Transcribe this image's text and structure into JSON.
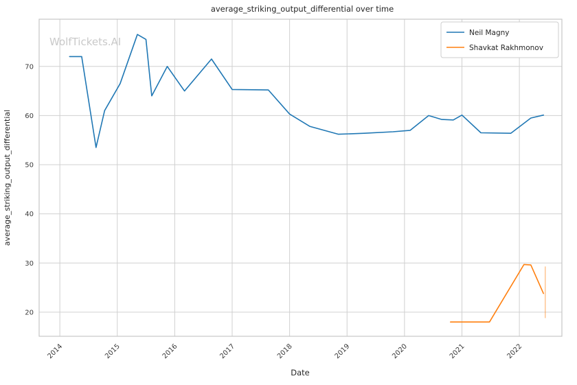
{
  "watermark": "WolfTickets.AI",
  "colors": {
    "grid": "#d0d0d0",
    "spine": "#c6c6c6",
    "text": "#262626",
    "tick_text": "#3a3a3a",
    "watermark": "#c9c9c9",
    "legend_border": "#cccccc",
    "legend_bg": "#ffffff"
  },
  "chart_data": {
    "type": "line",
    "title": "average_striking_output_differential over time",
    "xlabel": "Date",
    "ylabel": "average_striking_output_differential",
    "xlim": [
      2013.64,
      2022.74
    ],
    "ylim": [
      15.1,
      79.6
    ],
    "x_ticks": [
      2014,
      2015,
      2016,
      2017,
      2018,
      2019,
      2020,
      2021,
      2022
    ],
    "y_ticks": [
      20,
      30,
      40,
      50,
      60,
      70
    ],
    "grid": true,
    "legend_position": "upper right",
    "series": [
      {
        "name": "Neil Magny",
        "color": "#1f77b4",
        "x": [
          2014.17,
          2014.38,
          2014.63,
          2014.78,
          2015.05,
          2015.35,
          2015.5,
          2015.6,
          2015.87,
          2016.17,
          2016.64,
          2017.0,
          2017.63,
          2018.0,
          2018.35,
          2018.85,
          2019.3,
          2019.8,
          2020.1,
          2020.42,
          2020.65,
          2020.85,
          2021.0,
          2021.33,
          2021.85,
          2022.2,
          2022.42
        ],
        "y": [
          72,
          72,
          53.5,
          61,
          66.5,
          76.5,
          75.5,
          64,
          70,
          65,
          71.5,
          65.3,
          65.2,
          60.3,
          57.8,
          56.2,
          56.4,
          56.7,
          57,
          60,
          59.2,
          59.1,
          60.1,
          56.5,
          56.4,
          59.5,
          60.1
        ]
      },
      {
        "name": "Shavkat Rakhmonov",
        "color": "#ff7f0e",
        "x": [
          2020.8,
          2021.48,
          2022.08,
          2022.2,
          2022.42
        ],
        "y": [
          18,
          18,
          29.7,
          29.6,
          23.8
        ],
        "error_bar": {
          "x": 2022.45,
          "y_low": 18.8,
          "y_high": 29.3
        }
      }
    ]
  }
}
